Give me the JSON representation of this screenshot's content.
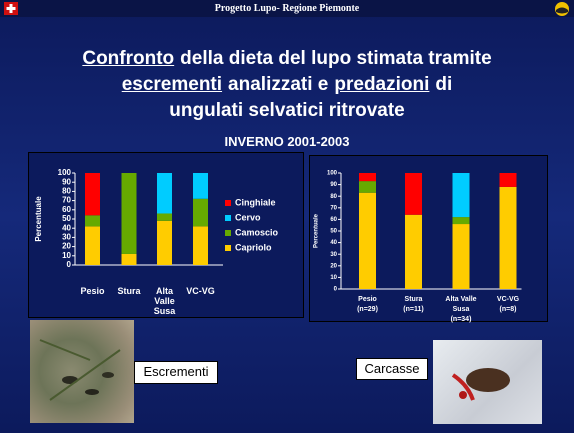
{
  "header": "Progetto Lupo- Regione Piemonte",
  "title": [
    [
      {
        "text": "Confronto",
        "underline": true
      },
      {
        "text": "della dieta del lupo stimata tramite",
        "underline": false
      }
    ],
    [
      {
        "text": "escrementi",
        "underline": true
      },
      {
        "text": "analizzati e",
        "underline": false
      },
      {
        "text": "predazioni",
        "underline": true
      },
      {
        "text": "di",
        "underline": false
      }
    ],
    [
      {
        "text": "ungulati selvatici ritrovate",
        "underline": false
      }
    ]
  ],
  "subtitle": "INVERNO 2001-2003",
  "photo_labels": [
    "Escrementi",
    "Carcasse"
  ],
  "chart_data": [
    {
      "type": "stacked_bar",
      "y_label": "Percentuale",
      "categories": [
        "Pesio",
        "Stura",
        "Alta\nValle\nSusa",
        "VC-VG"
      ],
      "series": [
        {
          "name": "Capriolo",
          "color": "#ffcc00",
          "values": [
            42,
            12,
            48,
            42
          ]
        },
        {
          "name": "Camoscio",
          "color": "#66aa00",
          "values": [
            12,
            88,
            8,
            30
          ]
        },
        {
          "name": "Cervo",
          "color": "#00ccff",
          "values": [
            0,
            0,
            44,
            28
          ]
        },
        {
          "name": "Cinghiale",
          "color": "#ff0000",
          "values": [
            46,
            0,
            0,
            0
          ]
        }
      ],
      "ylim": [
        0,
        100
      ],
      "yticks": [
        0,
        10,
        20,
        30,
        40,
        50,
        60,
        70,
        80,
        90,
        100
      ],
      "legend": true
    },
    {
      "type": "stacked_bar",
      "y_label": "Percentuale",
      "categories": [
        "Pesio\n(n=29)",
        "Stura\n(n=11)",
        "Alta Valle\nSusa\n(n=34)",
        "VC-VG\n(n=8)"
      ],
      "series": [
        {
          "color": "#ffcc00",
          "values": [
            83,
            64,
            56,
            88
          ]
        },
        {
          "color": "#66aa00",
          "values": [
            10,
            0,
            6,
            0
          ]
        },
        {
          "color": "#00ccff",
          "values": [
            0,
            0,
            38,
            0
          ]
        },
        {
          "color": "#ff0000",
          "values": [
            7,
            36,
            0,
            12
          ]
        }
      ],
      "ylim": [
        0,
        100
      ],
      "yticks": [
        0,
        10,
        20,
        30,
        40,
        50,
        60,
        70,
        80,
        90,
        100
      ],
      "legend": false
    }
  ]
}
